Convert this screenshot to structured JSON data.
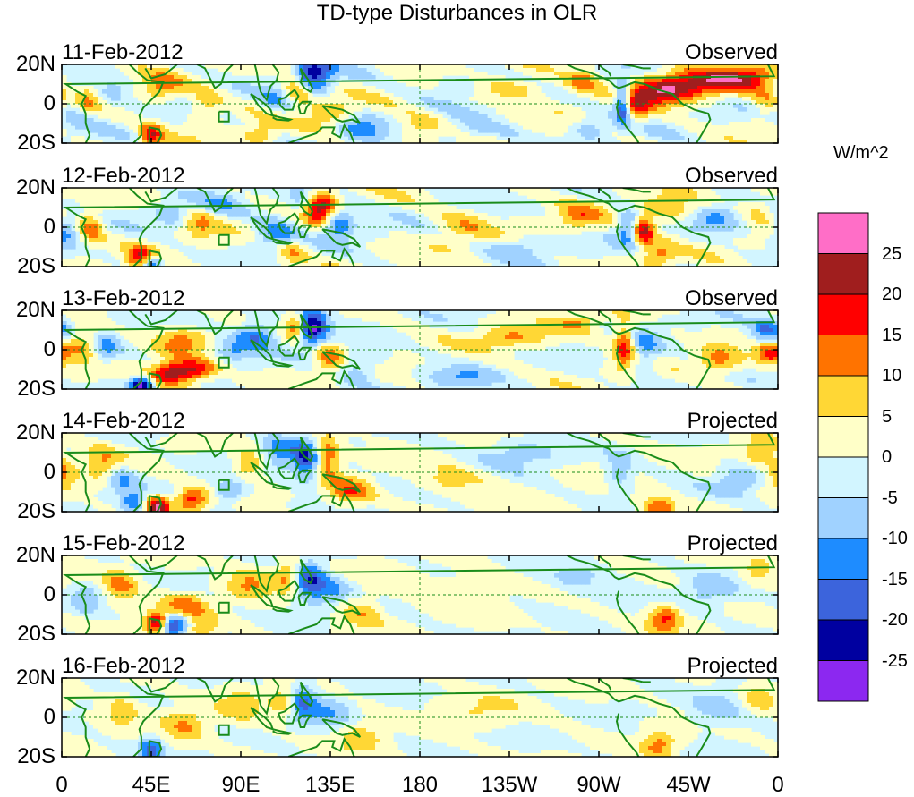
{
  "title": "TD-type Disturbances in OLR",
  "chart_data": {
    "type": "heatmap",
    "title": "TD-type Disturbances in OLR",
    "variable": "OLR anomaly (TD-type filtered)",
    "units": "W/m^2",
    "x_ticks": [
      "0",
      "45E",
      "90E",
      "135E",
      "180",
      "135W",
      "90W",
      "45W",
      "0"
    ],
    "x_range": [
      0,
      360
    ],
    "y_ticks": [
      "20N",
      "0",
      "20S"
    ],
    "y_range": [
      -20,
      20
    ],
    "panels": [
      {
        "date": "11-Feb-2012",
        "type": "Observed"
      },
      {
        "date": "12-Feb-2012",
        "type": "Observed"
      },
      {
        "date": "13-Feb-2012",
        "type": "Observed"
      },
      {
        "date": "14-Feb-2012",
        "type": "Projected"
      },
      {
        "date": "15-Feb-2012",
        "type": "Projected"
      },
      {
        "date": "16-Feb-2012",
        "type": "Projected"
      }
    ],
    "colorbar": {
      "unit": "W/m^2",
      "labels": [
        "25",
        "20",
        "15",
        "10",
        "5",
        "0",
        "-5",
        "-10",
        "-15",
        "-20",
        "-25"
      ],
      "colors": [
        "#ff6ec7",
        "#a01e1e",
        "#ff0000",
        "#ff7300",
        "#ffd735",
        "#ffffc8",
        "#d2f5ff",
        "#a0d2ff",
        "#1e8cff",
        "#3c64dc",
        "#0000a0",
        "#8c28f0"
      ]
    },
    "features": [
      {
        "panel": 0,
        "label": "strongest negative anomaly near 125E, 15N and 75W, 0"
      },
      {
        "panel": 0,
        "label": "positive band 60W-20W, 0-15N"
      }
    ]
  }
}
